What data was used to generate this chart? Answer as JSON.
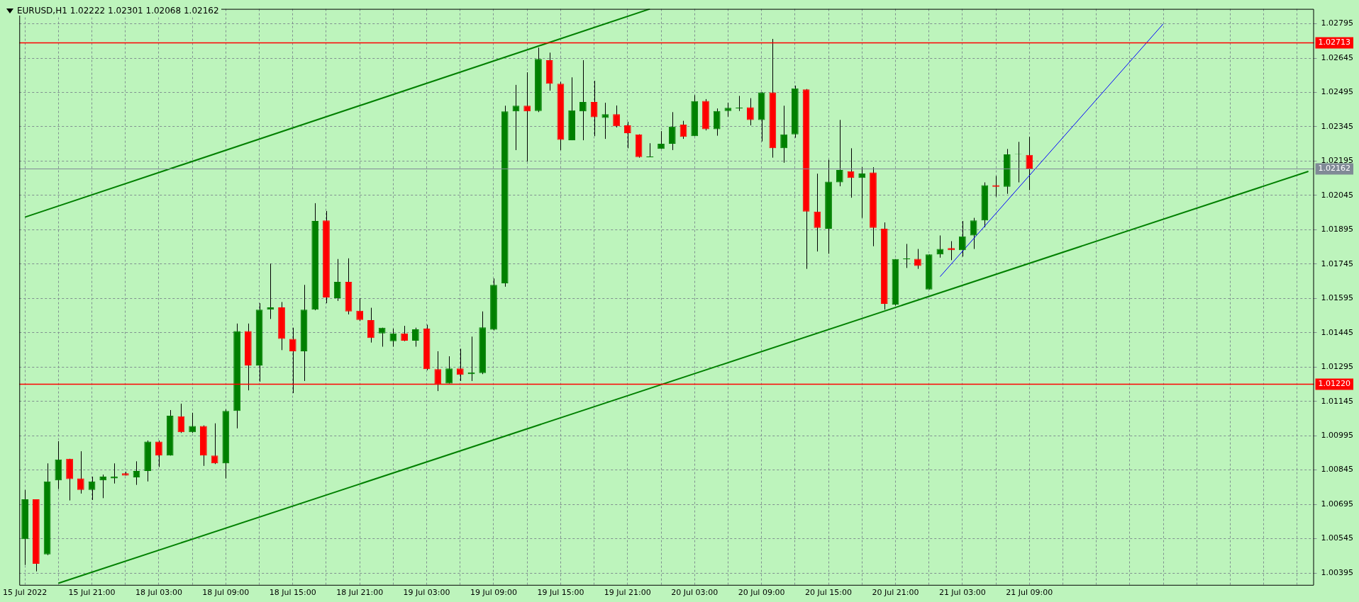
{
  "chart_data": {
    "type": "candlestick",
    "title": "EURUSD,H1  1.02222 1.02301 1.02068 1.02162",
    "categories": [
      "15 Jul 2022",
      null,
      null,
      null,
      null,
      null,
      "15 Jul 21:00",
      null,
      null,
      null,
      null,
      null,
      "18 Jul 03:00",
      null,
      null,
      null,
      null,
      null,
      "18 Jul 09:00",
      null,
      null,
      null,
      null,
      null,
      "18 Jul 15:00",
      null,
      null,
      null,
      null,
      null,
      "18 Jul 21:00",
      null,
      null,
      null,
      null,
      null,
      "19 Jul 03:00",
      null,
      null,
      null,
      null,
      null,
      "19 Jul 09:00",
      null,
      null,
      null,
      null,
      null,
      "19 Jul 15:00",
      null,
      null,
      null,
      null,
      null,
      "19 Jul 21:00",
      null,
      null,
      null,
      null,
      null,
      "20 Jul 03:00",
      null,
      null,
      null,
      null,
      null,
      "20 Jul 09:00",
      null,
      null,
      null,
      null,
      null,
      "20 Jul 15:00",
      null,
      null,
      null,
      null,
      null,
      "20 Jul 21:00",
      null,
      null,
      null,
      null,
      null,
      "21 Jul 03:00",
      null,
      null,
      null,
      null,
      null,
      "21 Jul 09:00",
      null,
      null,
      null,
      null,
      null,
      null,
      null,
      null,
      null,
      null,
      null,
      null,
      null,
      null,
      null,
      null,
      null,
      null,
      null,
      null,
      null,
      null,
      null,
      null,
      null
    ],
    "ohlc": [
      [
        1.00543,
        1.00758,
        1.0043,
        1.00717
      ],
      [
        1.00717,
        1.00717,
        1.00402,
        1.00435
      ],
      [
        1.00476,
        1.00874,
        1.00473,
        1.00795
      ],
      [
        1.008,
        1.00971,
        1.00762,
        1.00891
      ],
      [
        1.00894,
        1.00894,
        1.00712,
        1.00805
      ],
      [
        1.00808,
        1.00927,
        1.00742,
        1.00758
      ],
      [
        1.00758,
        1.00816,
        1.00714,
        1.00795
      ],
      [
        1.008,
        1.00825,
        1.00722,
        1.00816
      ],
      [
        1.00808,
        1.00874,
        1.00786,
        1.00816
      ],
      [
        1.00831,
        1.00838,
        1.00821,
        1.00821
      ],
      [
        1.00813,
        1.00883,
        1.0078,
        1.00841
      ],
      [
        1.00841,
        1.00974,
        1.00795,
        1.00969
      ],
      [
        1.00969,
        1.00974,
        1.00858,
        1.00908
      ],
      [
        1.00908,
        1.01107,
        1.00908,
        1.01082
      ],
      [
        1.0108,
        1.01135,
        1.01007,
        1.0101
      ],
      [
        1.0101,
        1.01095,
        1.01007,
        1.01037
      ],
      [
        1.01037,
        1.0104,
        1.00863,
        1.00908
      ],
      [
        1.00908,
        1.01049,
        1.00871,
        1.00874
      ],
      [
        1.00874,
        1.0111,
        1.00808,
        1.01103
      ],
      [
        1.01103,
        1.01485,
        1.01027,
        1.01452
      ],
      [
        1.01452,
        1.01485,
        1.01193,
        1.01302
      ],
      [
        1.01302,
        1.01574,
        1.01231,
        1.01546
      ],
      [
        1.01546,
        1.01747,
        1.01505,
        1.01556
      ],
      [
        1.01556,
        1.01579,
        1.01369,
        1.01418
      ],
      [
        1.01418,
        1.01467,
        1.01181,
        1.01364
      ],
      [
        1.01364,
        1.01654,
        1.01234,
        1.01546
      ],
      [
        1.01546,
        1.02011,
        1.01543,
        1.01933
      ],
      [
        1.01936,
        1.01977,
        1.01574,
        1.01599
      ],
      [
        1.01596,
        1.01767,
        1.01584,
        1.01667
      ],
      [
        1.01667,
        1.0177,
        1.01525,
        1.01538
      ],
      [
        1.01541,
        1.01596,
        1.01496,
        1.01501
      ],
      [
        1.015,
        1.01554,
        1.01402,
        1.01422
      ],
      [
        1.01442,
        1.01467,
        1.01384,
        1.01467
      ],
      [
        1.01408,
        1.01463,
        1.01384,
        1.01442
      ],
      [
        1.01442,
        1.01475,
        1.01408,
        1.0141
      ],
      [
        1.0141,
        1.01467,
        1.01384,
        1.0146
      ],
      [
        1.01463,
        1.0148,
        1.01281,
        1.01286
      ],
      [
        1.01286,
        1.01364,
        1.0119,
        1.01219
      ],
      [
        1.01223,
        1.01342,
        1.01223,
        1.01289
      ],
      [
        1.01289,
        1.01375,
        1.01234,
        1.01261
      ],
      [
        1.01264,
        1.01428,
        1.01234,
        1.01272
      ],
      [
        1.01269,
        1.01538,
        1.01264,
        1.01468
      ],
      [
        1.01458,
        1.01682,
        1.01455,
        1.01654
      ],
      [
        1.01661,
        1.02437,
        1.01646,
        1.02412
      ],
      [
        1.02412,
        1.02528,
        1.02243,
        1.02437
      ],
      [
        1.02437,
        1.02583,
        1.02193,
        1.02412
      ],
      [
        1.02414,
        1.02691,
        1.02409,
        1.02641
      ],
      [
        1.02636,
        1.02669,
        1.02503,
        1.02533
      ],
      [
        1.02533,
        1.02541,
        1.02243,
        1.02288
      ],
      [
        1.02286,
        1.02561,
        1.02286,
        1.02417
      ],
      [
        1.02412,
        1.02636,
        1.02286,
        1.02453
      ],
      [
        1.02453,
        1.02546,
        1.02304,
        1.02387
      ],
      [
        1.02384,
        1.0245,
        1.02292,
        1.024
      ],
      [
        1.024,
        1.02438,
        1.02342,
        1.02347
      ],
      [
        1.02351,
        1.02367,
        1.02251,
        1.02317
      ],
      [
        1.02312,
        1.02312,
        1.0221,
        1.02213
      ],
      [
        1.02214,
        1.02273,
        1.02214,
        1.02214
      ],
      [
        1.02248,
        1.02326,
        1.02248,
        1.02271
      ],
      [
        1.02271,
        1.02409,
        1.02243,
        1.02346
      ],
      [
        1.02354,
        1.02371,
        1.02292,
        1.02301
      ],
      [
        1.02304,
        1.02483,
        1.02304,
        1.02457
      ],
      [
        1.02458,
        1.02466,
        1.02329,
        1.02334
      ],
      [
        1.02334,
        1.02425,
        1.02306,
        1.02414
      ],
      [
        1.02414,
        1.0245,
        1.02389,
        1.02428
      ],
      [
        1.0243,
        1.0248,
        1.02414,
        1.0243
      ],
      [
        1.0243,
        1.0247,
        1.02351,
        1.02374
      ],
      [
        1.02374,
        1.02497,
        1.02281,
        1.02495
      ],
      [
        1.02495,
        1.02729,
        1.0221,
        1.02251
      ],
      [
        1.02251,
        1.02437,
        1.02188,
        1.02312
      ],
      [
        1.02312,
        1.02525,
        1.02297,
        1.02513
      ],
      [
        1.02508,
        1.0251,
        1.01724,
        1.01974
      ],
      [
        1.01974,
        1.0214,
        1.018,
        1.01903
      ],
      [
        1.01899,
        1.02201,
        1.0179,
        1.02105
      ],
      [
        1.02102,
        1.02375,
        1.02085,
        1.02156
      ],
      [
        1.02151,
        1.02251,
        1.02035,
        1.02121
      ],
      [
        1.02121,
        1.02168,
        1.01947,
        1.02141
      ],
      [
        1.02145,
        1.02168,
        1.01823,
        1.01903
      ],
      [
        1.01899,
        1.01927,
        1.01546,
        1.01571
      ],
      [
        1.01568,
        1.01767,
        1.01563,
        1.01767
      ],
      [
        1.01768,
        1.01833,
        1.01728,
        1.01768
      ],
      [
        1.01768,
        1.01811,
        1.01724,
        1.01737
      ],
      [
        1.01634,
        1.01787,
        1.01634,
        1.01787
      ],
      [
        1.01787,
        1.0187,
        1.01773,
        1.01811
      ],
      [
        1.01815,
        1.01845,
        1.01762,
        1.01806
      ],
      [
        1.01806,
        1.01933,
        1.01778,
        1.01866
      ],
      [
        1.0187,
        1.01947,
        1.01811,
        1.01936
      ],
      [
        1.01936,
        1.02102,
        1.01906,
        1.0209
      ],
      [
        1.0209,
        1.0213,
        1.0204,
        1.02083
      ],
      [
        1.02083,
        1.02248,
        1.02052,
        1.02224
      ],
      [
        1.02224,
        1.02279,
        1.02102,
        1.02226
      ],
      [
        1.02222,
        1.02301,
        1.02068,
        1.02162
      ],
      null,
      null,
      null,
      null,
      null,
      null,
      null,
      null,
      null,
      null,
      null,
      null,
      null,
      null,
      null,
      null,
      null,
      null,
      null,
      null,
      null,
      null,
      null,
      null,
      null
    ],
    "colors": [
      "#008000",
      "#ff0000",
      "#008000",
      "#008000",
      "#ff0000",
      "#ff0000",
      "#008000",
      "#008000",
      "#008000",
      "#ff0000",
      "#008000",
      "#008000",
      "#ff0000",
      "#008000",
      "#ff0000",
      "#008000",
      "#ff0000",
      "#ff0000",
      "#008000",
      "#008000",
      "#ff0000",
      "#008000",
      "#008000",
      "#ff0000",
      "#ff0000",
      "#008000",
      "#008000",
      "#ff0000",
      "#008000",
      "#ff0000",
      "#ff0000",
      "#ff0000",
      "#008000",
      "#008000",
      "#ff0000",
      "#008000",
      "#ff0000",
      "#ff0000",
      "#008000",
      "#ff0000",
      "#008000",
      "#008000",
      "#008000",
      "#008000",
      "#008000",
      "#ff0000",
      "#008000",
      "#ff0000",
      "#ff0000",
      "#008000",
      "#008000",
      "#ff0000",
      "#008000",
      "#ff0000",
      "#ff0000",
      "#ff0000",
      "#008000",
      "#008000",
      "#008000",
      "#ff0000",
      "#008000",
      "#ff0000",
      "#008000",
      "#008000",
      "#008000",
      "#ff0000",
      "#008000",
      "#ff0000",
      "#008000",
      "#008000",
      "#ff0000",
      "#ff0000",
      "#008000",
      "#008000",
      "#ff0000",
      "#008000",
      "#ff0000",
      "#ff0000",
      "#008000",
      "#008000",
      "#ff0000",
      "#008000",
      "#008000",
      "#ff0000",
      "#008000",
      "#008000",
      "#008000",
      "#ff0000",
      "#008000",
      "#008000",
      "#ff0000",
      null,
      null,
      null,
      null,
      null,
      null,
      null,
      null,
      null,
      null,
      null,
      null,
      null,
      null,
      null,
      null,
      null,
      null,
      null,
      null,
      null,
      null,
      null,
      null,
      null
    ],
    "series": [
      {
        "type": "line",
        "color": "#008000",
        "values": [
          1.0195,
          null,
          null,
          null,
          null,
          null,
          null,
          null,
          null,
          null,
          null,
          null,
          null,
          null,
          null,
          null,
          null,
          null,
          null,
          null,
          null,
          null,
          null,
          null,
          null,
          null,
          null,
          null,
          null,
          null,
          null,
          null,
          null,
          null,
          null,
          null,
          null,
          null,
          null,
          null,
          null,
          null,
          null,
          null,
          null,
          null,
          null,
          null,
          null,
          null,
          null,
          null,
          null,
          null,
          null,
          null,
          1.0286,
          null,
          null,
          null,
          null,
          null,
          null,
          null,
          null,
          null,
          null,
          null,
          null,
          null,
          null,
          null,
          null,
          null,
          null,
          null,
          null,
          null,
          null,
          null,
          null,
          null,
          null,
          null,
          null,
          null,
          null,
          null,
          null,
          null,
          null,
          null,
          null,
          null,
          null,
          null,
          null,
          null,
          null,
          null,
          null,
          null,
          null,
          null,
          null,
          null,
          null,
          null,
          null,
          null,
          null,
          null,
          null,
          null,
          null,
          null
        ]
      },
      {
        "type": "line",
        "color": "#008000",
        "values": [
          null,
          null,
          null,
          1.0035,
          null,
          null,
          null,
          null,
          null,
          null,
          null,
          null,
          null,
          null,
          null,
          null,
          null,
          null,
          null,
          null,
          null,
          null,
          null,
          null,
          null,
          null,
          null,
          null,
          null,
          null,
          null,
          null,
          null,
          null,
          null,
          null,
          null,
          null,
          null,
          null,
          null,
          null,
          null,
          null,
          null,
          null,
          null,
          null,
          null,
          null,
          null,
          null,
          null,
          null,
          null,
          null,
          null,
          null,
          null,
          null,
          null,
          null,
          null,
          null,
          null,
          null,
          null,
          null,
          null,
          null,
          null,
          null,
          null,
          null,
          null,
          null,
          null,
          null,
          null,
          null,
          null,
          null,
          null,
          null,
          null,
          null,
          null,
          null,
          null,
          null,
          null,
          null,
          null,
          null,
          null,
          null,
          null,
          null,
          null,
          null,
          null,
          null,
          null,
          null,
          null,
          null,
          null,
          null,
          null,
          null,
          null,
          null,
          null,
          null,
          null,
          1.0215
        ]
      },
      {
        "type": "line",
        "color": "#0000ff",
        "values": [
          null,
          null,
          null,
          null,
          null,
          null,
          null,
          null,
          null,
          null,
          null,
          null,
          null,
          null,
          null,
          null,
          null,
          null,
          null,
          null,
          null,
          null,
          null,
          null,
          null,
          null,
          null,
          null,
          null,
          null,
          null,
          null,
          null,
          null,
          null,
          null,
          null,
          null,
          null,
          null,
          null,
          null,
          null,
          null,
          null,
          null,
          null,
          null,
          null,
          null,
          null,
          null,
          null,
          null,
          null,
          null,
          null,
          null,
          null,
          null,
          null,
          null,
          null,
          null,
          null,
          null,
          null,
          null,
          null,
          null,
          null,
          null,
          null,
          null,
          null,
          null,
          null,
          null,
          null,
          null,
          null,
          null,
          1.0169,
          null,
          null,
          null,
          null,
          null,
          null,
          null,
          null,
          null,
          null,
          null,
          null,
          null,
          null,
          null,
          null,
          null,
          null,
          null,
          1.02795,
          null,
          null,
          null,
          null,
          null,
          null,
          null,
          null,
          null,
          null,
          null,
          null,
          null
        ]
      }
    ],
    "ylim": [
      1.0034,
      1.0286
    ],
    "yticks": [
      1.00395,
      1.00545,
      1.00695,
      1.00845,
      1.00995,
      1.01145,
      1.01295,
      1.01445,
      1.01595,
      1.01745,
      1.01895,
      1.02045,
      1.02195,
      1.02345,
      1.02495,
      1.02645,
      1.02795
    ],
    "ref_lines": [
      {
        "axis": "y",
        "value": 1.02713,
        "label": "1.02713",
        "color": "#ff0000"
      },
      {
        "axis": "y",
        "value": 1.0122,
        "label": "1.01220",
        "color": "#ff0000"
      },
      {
        "axis": "y",
        "value": 1.02162,
        "label": "1.02162",
        "color": "#808a96"
      }
    ],
    "grid": true
  }
}
